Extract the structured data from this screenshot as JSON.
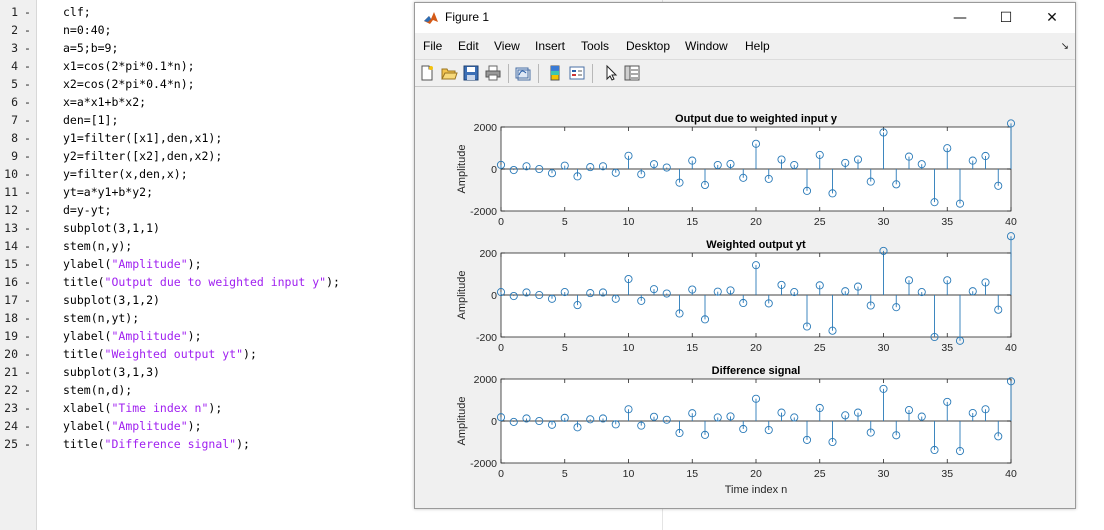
{
  "editor": {
    "lines": [
      {
        "n": "1",
        "parts": [
          {
            "t": "clf;"
          }
        ]
      },
      {
        "n": "2",
        "parts": [
          {
            "t": "n=0:40;"
          }
        ]
      },
      {
        "n": "3",
        "parts": [
          {
            "t": "a=5;b=9;"
          }
        ]
      },
      {
        "n": "4",
        "parts": [
          {
            "t": "x1=cos(2*pi*0.1*n);"
          }
        ]
      },
      {
        "n": "5",
        "parts": [
          {
            "t": "x2=cos(2*pi*0.4*n);"
          }
        ]
      },
      {
        "n": "6",
        "parts": [
          {
            "t": "x=a*x1+b*x2;"
          }
        ]
      },
      {
        "n": "7",
        "parts": [
          {
            "t": "den=[1];"
          }
        ]
      },
      {
        "n": "8",
        "parts": [
          {
            "t": "y1=filter([x1],den,x1);"
          }
        ]
      },
      {
        "n": "9",
        "parts": [
          {
            "t": "y2=filter([x2],den,x2);"
          }
        ]
      },
      {
        "n": "10",
        "parts": [
          {
            "t": "y=filter(x,den,x);"
          }
        ]
      },
      {
        "n": "11",
        "parts": [
          {
            "t": "yt=a*y1+b*y2;"
          }
        ]
      },
      {
        "n": "12",
        "parts": [
          {
            "t": "d=y-yt;"
          }
        ]
      },
      {
        "n": "13",
        "parts": [
          {
            "t": "subplot(3,1,1)"
          }
        ]
      },
      {
        "n": "14",
        "parts": [
          {
            "t": "stem(n,y);"
          }
        ]
      },
      {
        "n": "15",
        "parts": [
          {
            "t": "ylabel("
          },
          {
            "t": "\"Amplitude\"",
            "s": true
          },
          {
            "t": ");"
          }
        ]
      },
      {
        "n": "16",
        "parts": [
          {
            "t": "title("
          },
          {
            "t": "\"Output due to weighted input y\"",
            "s": true
          },
          {
            "t": ");"
          }
        ]
      },
      {
        "n": "17",
        "parts": [
          {
            "t": "subplot(3,1,2)"
          }
        ]
      },
      {
        "n": "18",
        "parts": [
          {
            "t": "stem(n,yt);"
          }
        ]
      },
      {
        "n": "19",
        "parts": [
          {
            "t": "ylabel("
          },
          {
            "t": "\"Amplitude\"",
            "s": true
          },
          {
            "t": ");"
          }
        ]
      },
      {
        "n": "20",
        "parts": [
          {
            "t": "title("
          },
          {
            "t": "\"Weighted output yt\"",
            "s": true
          },
          {
            "t": ");"
          }
        ]
      },
      {
        "n": "21",
        "parts": [
          {
            "t": "subplot(3,1,3)"
          }
        ]
      },
      {
        "n": "22",
        "parts": [
          {
            "t": "stem(n,d);"
          }
        ]
      },
      {
        "n": "23",
        "parts": [
          {
            "t": "xlabel("
          },
          {
            "t": "\"Time index n\"",
            "s": true
          },
          {
            "t": ");"
          }
        ]
      },
      {
        "n": "24",
        "parts": [
          {
            "t": "ylabel("
          },
          {
            "t": "\"Amplitude\"",
            "s": true
          },
          {
            "t": ");"
          }
        ]
      },
      {
        "n": "25",
        "parts": [
          {
            "t": "title("
          },
          {
            "t": "\"Difference signal\"",
            "s": true
          },
          {
            "t": ");"
          }
        ]
      }
    ],
    "breakpoint_marker": "-"
  },
  "figure": {
    "title": "Figure 1",
    "icon": "matlab-logo-icon",
    "window_buttons": {
      "minimize": "—",
      "maximize": "☐",
      "close": "✕"
    },
    "menus": [
      "File",
      "Edit",
      "View",
      "Insert",
      "Tools",
      "Desktop",
      "Window",
      "Help"
    ],
    "dock_arrow": "↘",
    "toolbar_icons": [
      "new-figure-icon",
      "open-file-icon",
      "save-icon",
      "print-icon",
      "link-plot-icon",
      "insert-colorbar-icon",
      "insert-legend-icon",
      "edit-plot-icon",
      "property-inspector-icon"
    ]
  },
  "colors": {
    "stem": "#2a7ab8",
    "axes": "#262626",
    "string": "#a020f0"
  },
  "chart_data": [
    {
      "type": "stem",
      "title": "Output due to weighted input y",
      "ylabel": "Amplitude",
      "xlabel": "",
      "xlim": [
        0,
        40
      ],
      "ylim": [
        -2000,
        2000
      ],
      "xticks": [
        "0",
        "5",
        "10",
        "15",
        "20",
        "25",
        "30",
        "35",
        "40"
      ],
      "yticks": [
        "2000",
        "0",
        "-2000"
      ],
      "x": [
        0,
        1,
        2,
        3,
        4,
        5,
        6,
        7,
        8,
        9,
        10,
        11,
        12,
        13,
        14,
        15,
        16,
        17,
        18,
        19,
        20,
        21,
        22,
        23,
        24,
        25,
        26,
        27,
        28,
        29,
        30,
        31,
        32,
        33,
        34,
        35,
        36,
        37,
        38,
        39,
        40
      ],
      "values": [
        196,
        -50,
        130,
        0,
        -200,
        160,
        -350,
        90,
        130,
        -180,
        630,
        -250,
        230,
        70,
        -650,
        400,
        -760,
        190,
        240,
        -420,
        1200,
        -470,
        450,
        190,
        -1040,
        670,
        -1160,
        290,
        450,
        -600,
        1740,
        -730,
        590,
        230,
        -1580,
        990,
        -1650,
        400,
        620,
        -800,
        2170
      ]
    },
    {
      "type": "stem",
      "title": "Weighted output yt",
      "ylabel": "Amplitude",
      "xlabel": "",
      "xlim": [
        0,
        40
      ],
      "ylim": [
        -200,
        200
      ],
      "xticks": [
        "0",
        "5",
        "10",
        "15",
        "20",
        "25",
        "30",
        "35",
        "40"
      ],
      "yticks": [
        "200",
        "0",
        "-200"
      ],
      "x": [
        0,
        1,
        2,
        3,
        4,
        5,
        6,
        7,
        8,
        9,
        10,
        11,
        12,
        13,
        14,
        15,
        16,
        17,
        18,
        19,
        20,
        21,
        22,
        23,
        24,
        25,
        26,
        27,
        28,
        29,
        30,
        31,
        32,
        33,
        34,
        35,
        36,
        37,
        38,
        39,
        40
      ],
      "values": [
        14,
        -5,
        12,
        0,
        -18,
        14,
        -48,
        9,
        12,
        -18,
        76,
        -28,
        28,
        7,
        -88,
        26,
        -116,
        16,
        22,
        -38,
        142,
        -40,
        48,
        14,
        -150,
        46,
        -170,
        18,
        40,
        -50,
        210,
        -58,
        70,
        14,
        -200,
        70,
        -218,
        18,
        60,
        -70,
        280
      ]
    },
    {
      "type": "stem",
      "title": "Difference signal",
      "ylabel": "Amplitude",
      "xlabel": "Time index n",
      "xlim": [
        0,
        40
      ],
      "ylim": [
        -2000,
        2000
      ],
      "xticks": [
        "0",
        "5",
        "10",
        "15",
        "20",
        "25",
        "30",
        "35",
        "40"
      ],
      "yticks": [
        "2000",
        "0",
        "-2000"
      ],
      "x": [
        0,
        1,
        2,
        3,
        4,
        5,
        6,
        7,
        8,
        9,
        10,
        11,
        12,
        13,
        14,
        15,
        16,
        17,
        18,
        19,
        20,
        21,
        22,
        23,
        24,
        25,
        26,
        27,
        28,
        29,
        30,
        31,
        32,
        33,
        34,
        35,
        36,
        37,
        38,
        39,
        40
      ],
      "values": [
        180,
        -45,
        120,
        0,
        -180,
        150,
        -300,
        80,
        120,
        -160,
        560,
        -220,
        200,
        60,
        -570,
        370,
        -660,
        170,
        220,
        -380,
        1060,
        -430,
        400,
        170,
        -900,
        620,
        -1000,
        270,
        400,
        -550,
        1530,
        -680,
        520,
        210,
        -1380,
        910,
        -1430,
        380,
        560,
        -730,
        1890
      ]
    }
  ]
}
